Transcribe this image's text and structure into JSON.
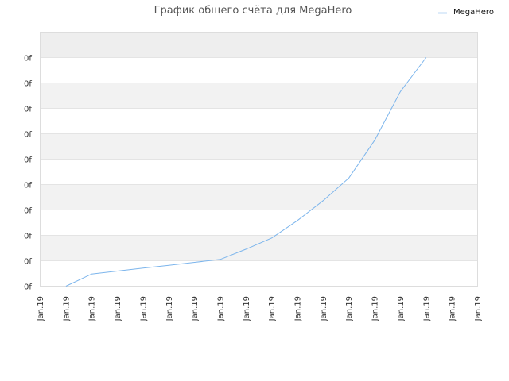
{
  "chart_data": {
    "type": "line",
    "title": "График общего счёта для MegaHero",
    "legend": {
      "placement": "top-right"
    },
    "grid": true,
    "x_tick_labels": [
      "Jan.19",
      "Jan.19",
      "Jan.19",
      "Jan.19",
      "Jan.19",
      "Jan.19",
      "Jan.19",
      "Jan.19",
      "Jan.19",
      "Jan.19",
      "Jan.19",
      "Jan.19",
      "Jan.19",
      "Jan.19",
      "Jan.19",
      "Jan.19",
      "Jan.19",
      "Jan.19"
    ],
    "y_tick_labels": [
      "0f",
      "0f",
      "0f",
      "0f",
      "0f",
      "0f",
      "0f",
      "0f",
      "0f",
      "0f"
    ],
    "xlim": [
      0,
      17
    ],
    "ylim": [
      0,
      9.4
    ],
    "series": [
      {
        "name": "MegaHero",
        "color": "#7cb5ec",
        "points": [
          [
            1,
            0
          ],
          [
            2,
            0.5
          ],
          [
            3,
            0.62
          ],
          [
            4,
            0.74
          ],
          [
            5,
            0.86
          ],
          [
            6,
            0.98
          ],
          [
            7,
            1.1
          ],
          [
            8,
            1.52
          ],
          [
            9,
            1.98
          ],
          [
            10,
            2.7
          ],
          [
            11,
            3.52
          ],
          [
            12,
            4.45
          ],
          [
            13,
            6.0
          ],
          [
            14,
            8.0
          ],
          [
            15,
            9.4
          ]
        ]
      }
    ]
  }
}
